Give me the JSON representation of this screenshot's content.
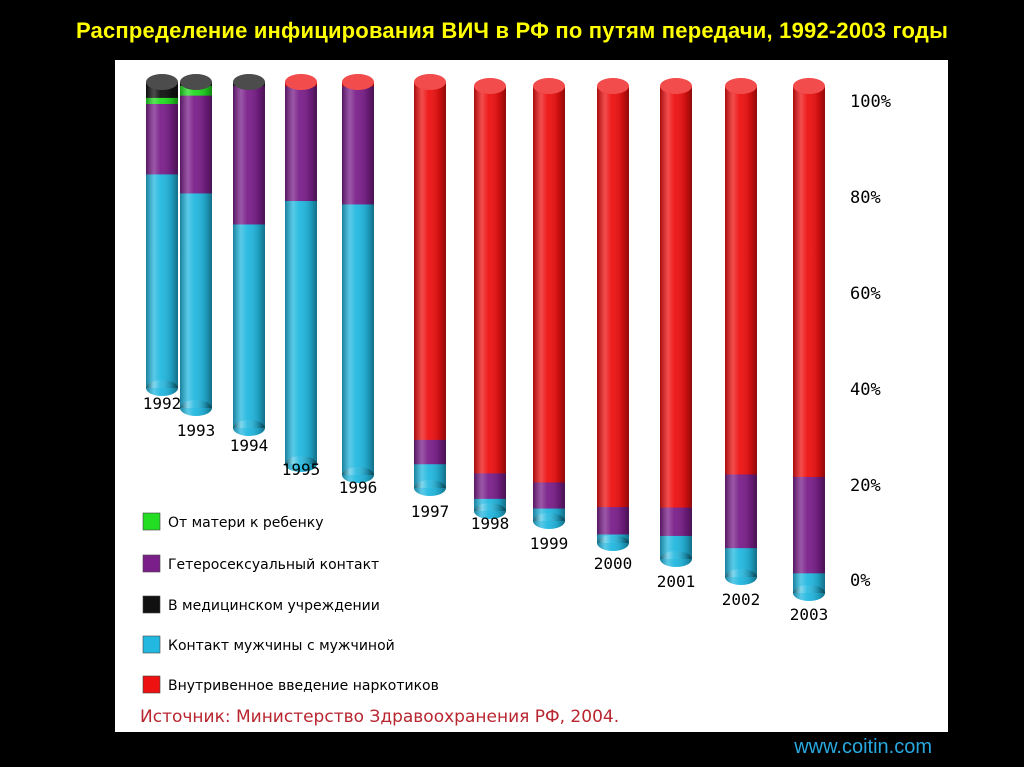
{
  "header": {
    "title": "Распределение инфицирования ВИЧ в РФ по путям передачи, 1992-2003 годы"
  },
  "footer": {
    "website": "www.coitin.com"
  },
  "chart_data": {
    "type": "bar",
    "stacked": true,
    "categories": [
      "1992",
      "1993",
      "1994",
      "1995",
      "1996",
      "1997",
      "1998",
      "1999",
      "2000",
      "2001",
      "2002",
      "2003"
    ],
    "series": [
      {
        "name": "Контакт мужчины с мужчиной",
        "color": "#22b8e0",
        "values": [
          70,
          66,
          59,
          69,
          69,
          6,
          3,
          3,
          2,
          5,
          6,
          4
        ]
      },
      {
        "name": "Гетеросексуальный контакт",
        "color": "#7a1f8a",
        "values": [
          23,
          30,
          40,
          30,
          30,
          6,
          6,
          6,
          6,
          6,
          15,
          19
        ]
      },
      {
        "name": "Внутривенное введение наркотиков",
        "color": "#ee1111",
        "values": [
          0,
          0,
          0,
          1,
          1,
          88,
          91,
          91,
          92,
          89,
          79,
          77
        ]
      },
      {
        "name": "От матери к ребенку",
        "color": "#22dd22",
        "values": [
          2,
          3,
          0,
          0,
          0,
          0,
          0,
          0,
          0,
          0,
          0,
          0
        ]
      },
      {
        "name": "В медицинском учреждении",
        "color": "#111111",
        "values": [
          5,
          1,
          1,
          0,
          0,
          0,
          0,
          0,
          0,
          0,
          0,
          0
        ]
      }
    ],
    "legend_order": [
      "От матери к ребенку",
      "Гетеросексуальный контакт",
      "В медицинском учреждении",
      "Контакт мужчины с мужчиной",
      "Внутривенное введение наркотиков"
    ],
    "y_ticks": [
      "0%",
      "20%",
      "40%",
      "60%",
      "80%",
      "100%"
    ],
    "ylim": [
      0,
      100
    ],
    "legend_position": "bottom-left",
    "source": "Источник: Министерство Здравоохранения РФ, 2004."
  }
}
